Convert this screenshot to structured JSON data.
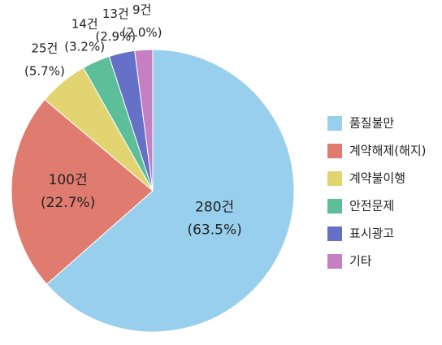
{
  "chart_data": {
    "type": "pie",
    "categories": [
      "품질불만",
      "계약해제(해지)",
      "계약불이행",
      "안전문제",
      "표시광고",
      "기타"
    ],
    "values": [
      280,
      100,
      25,
      14,
      13,
      9
    ],
    "value_labels": [
      "280건",
      "100건",
      "25건",
      "14건",
      "13건",
      "9건"
    ],
    "percent_labels": [
      "(63.5%)",
      "(22.7%)",
      "(5.7%)",
      "(3.2%)",
      "(2.9%)",
      "(2.0%)"
    ],
    "colors": [
      "#98cfec",
      "#e07b70",
      "#e2d470",
      "#5cbf9a",
      "#6571c6",
      "#c480c3"
    ]
  }
}
